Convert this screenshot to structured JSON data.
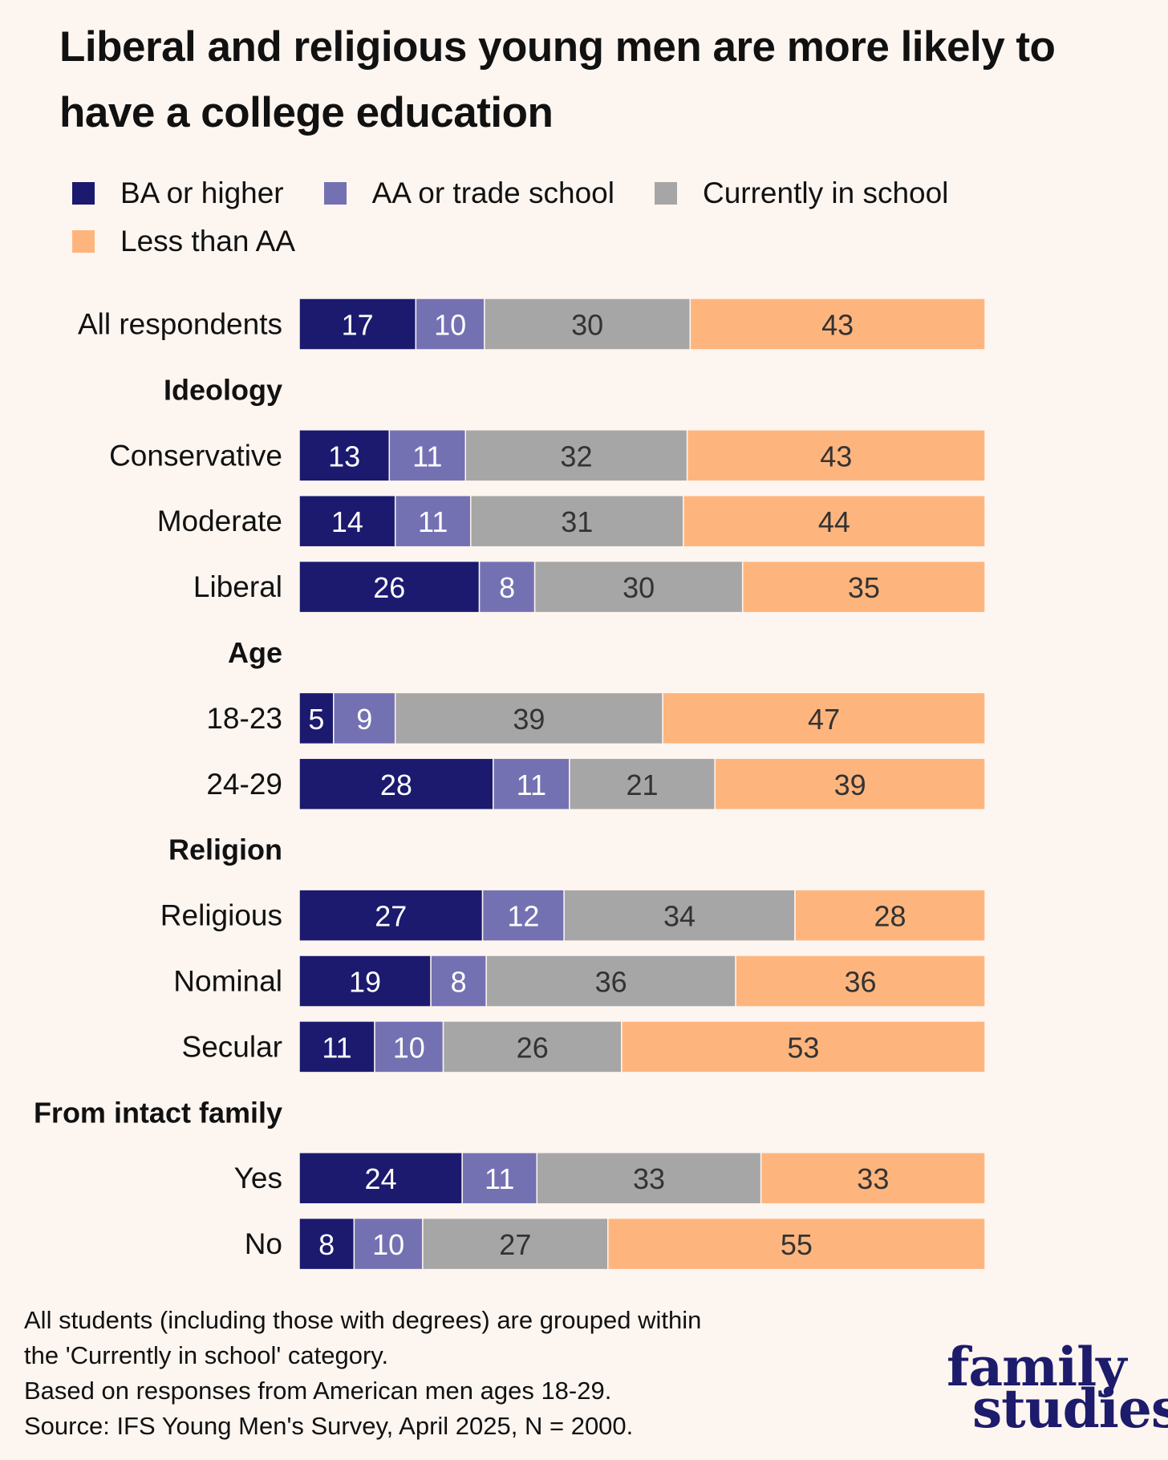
{
  "title": "Liberal and religious young men are more likely to have a college education",
  "legend": [
    {
      "label": "BA or higher",
      "color": "#1b1a6e"
    },
    {
      "label": "AA or trade school",
      "color": "#7471b3"
    },
    {
      "label": "Currently in school",
      "color": "#a6a6a6"
    },
    {
      "label": "Less than AA",
      "color": "#feb57d"
    }
  ],
  "chart_data": {
    "type": "bar",
    "orientation": "horizontal",
    "stacked": true,
    "xlim": [
      0,
      100
    ],
    "grid": false,
    "legend_position": "top",
    "series": [
      {
        "name": "BA or higher",
        "color": "#1b1a6e",
        "label_color": "#ffffff"
      },
      {
        "name": "AA or trade school",
        "color": "#7471b3",
        "label_color": "#ffffff"
      },
      {
        "name": "Currently in school",
        "color": "#a6a6a6",
        "label_color": "#333333"
      },
      {
        "name": "Less than AA",
        "color": "#feb57d",
        "label_color": "#333333"
      }
    ],
    "rows": [
      {
        "kind": "bar",
        "label": "All respondents",
        "values": [
          17,
          10,
          30,
          43
        ]
      },
      {
        "kind": "header",
        "label": "Ideology"
      },
      {
        "kind": "bar",
        "label": "Conservative",
        "values": [
          13,
          11,
          32,
          43
        ]
      },
      {
        "kind": "bar",
        "label": "Moderate",
        "values": [
          14,
          11,
          31,
          44
        ]
      },
      {
        "kind": "bar",
        "label": "Liberal",
        "values": [
          26,
          8,
          30,
          35
        ]
      },
      {
        "kind": "header",
        "label": "Age"
      },
      {
        "kind": "bar",
        "label": "18-23",
        "values": [
          5,
          9,
          39,
          47
        ]
      },
      {
        "kind": "bar",
        "label": "24-29",
        "values": [
          28,
          11,
          21,
          39
        ]
      },
      {
        "kind": "header",
        "label": "Religion"
      },
      {
        "kind": "bar",
        "label": "Religious",
        "values": [
          27,
          12,
          34,
          28
        ]
      },
      {
        "kind": "bar",
        "label": "Nominal",
        "values": [
          19,
          8,
          36,
          36
        ]
      },
      {
        "kind": "bar",
        "label": "Secular",
        "values": [
          11,
          10,
          26,
          53
        ]
      },
      {
        "kind": "header",
        "label": "From intact family"
      },
      {
        "kind": "bar",
        "label": "Yes",
        "values": [
          24,
          11,
          33,
          33
        ]
      },
      {
        "kind": "bar",
        "label": "No",
        "values": [
          8,
          10,
          27,
          55
        ]
      }
    ]
  },
  "notes": [
    "All students (including those with degrees) are grouped within",
    "the 'Currently in school' category.",
    "Based on responses from American men ages 18-29.",
    "Source: IFS Young Men's Survey, April 2025, N = 2000."
  ],
  "logo": {
    "line1": "family",
    "line2": "studies"
  }
}
